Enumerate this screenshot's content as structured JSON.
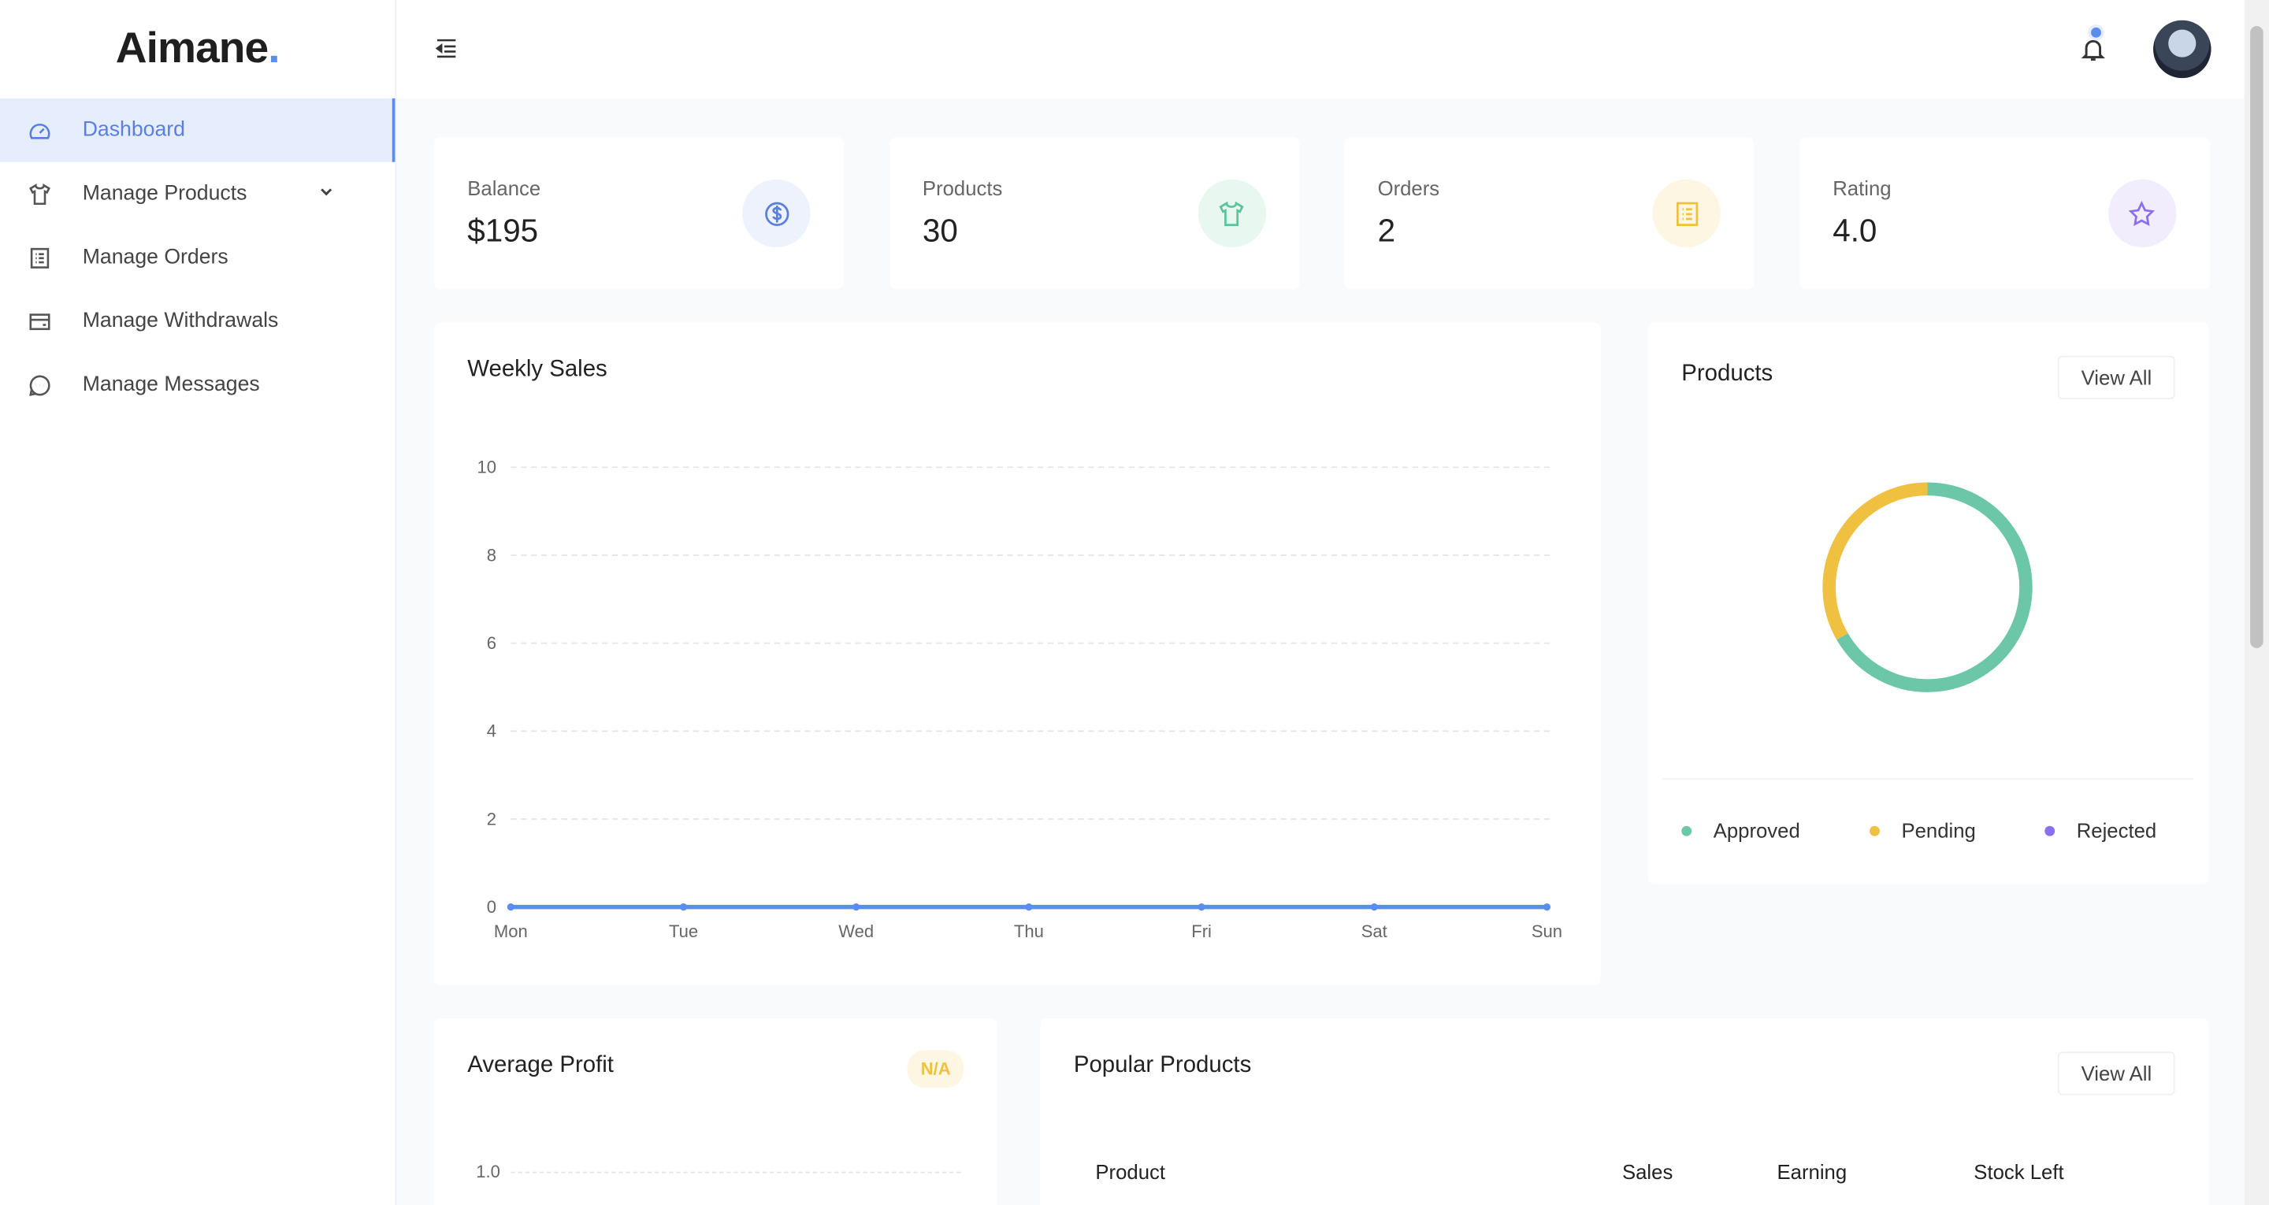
{
  "brand": {
    "name": "Aimane",
    "dot": "."
  },
  "sidebar": {
    "items": [
      {
        "label": "Dashboard",
        "icon": "dashboard-icon",
        "active": true
      },
      {
        "label": "Manage Products",
        "icon": "shirt-icon",
        "has_submenu": true
      },
      {
        "label": "Manage Orders",
        "icon": "list-icon"
      },
      {
        "label": "Manage Withdrawals",
        "icon": "wallet-icon"
      },
      {
        "label": "Manage Messages",
        "icon": "chat-icon"
      }
    ]
  },
  "stats": [
    {
      "label": "Balance",
      "value": "$195",
      "icon": "dollar-icon",
      "color": "#5b7fe0",
      "bg": "#eef2fd"
    },
    {
      "label": "Products",
      "value": "30",
      "icon": "shirt-icon",
      "color": "#5cc49a",
      "bg": "#e8f7f0"
    },
    {
      "label": "Orders",
      "value": "2",
      "icon": "list-icon",
      "color": "#f0c040",
      "bg": "#fdf6e3"
    },
    {
      "label": "Rating",
      "value": "4.0",
      "icon": "star-icon",
      "color": "#8b6ff0",
      "bg": "#f1edfd"
    }
  ],
  "weekly_sales": {
    "title": "Weekly Sales"
  },
  "products_card": {
    "title": "Products",
    "view_all": "View All"
  },
  "average_profit": {
    "title": "Average Profit",
    "badge": "N/A",
    "y_tick": "1.0"
  },
  "popular_products": {
    "title": "Popular Products",
    "view_all": "View All",
    "columns": [
      "Product",
      "Sales",
      "Earning",
      "Stock Left"
    ]
  },
  "chart_data": [
    {
      "type": "line",
      "title": "Weekly Sales",
      "categories": [
        "Mon",
        "Tue",
        "Wed",
        "Thu",
        "Fri",
        "Sat",
        "Sun"
      ],
      "values": [
        0,
        0,
        0,
        0,
        0,
        0,
        0
      ],
      "ylim": [
        0,
        10
      ],
      "yticks": [
        0,
        2,
        4,
        6,
        8,
        10
      ],
      "grid": true,
      "color": "#5b8def"
    },
    {
      "type": "pie",
      "title": "Products",
      "donut": true,
      "categories": [
        "Approved",
        "Pending",
        "Rejected"
      ],
      "values": [
        20,
        10,
        0
      ],
      "colors": [
        "#6cc7a8",
        "#f0c040",
        "#8b6ff0"
      ],
      "legend": "bottom"
    }
  ]
}
